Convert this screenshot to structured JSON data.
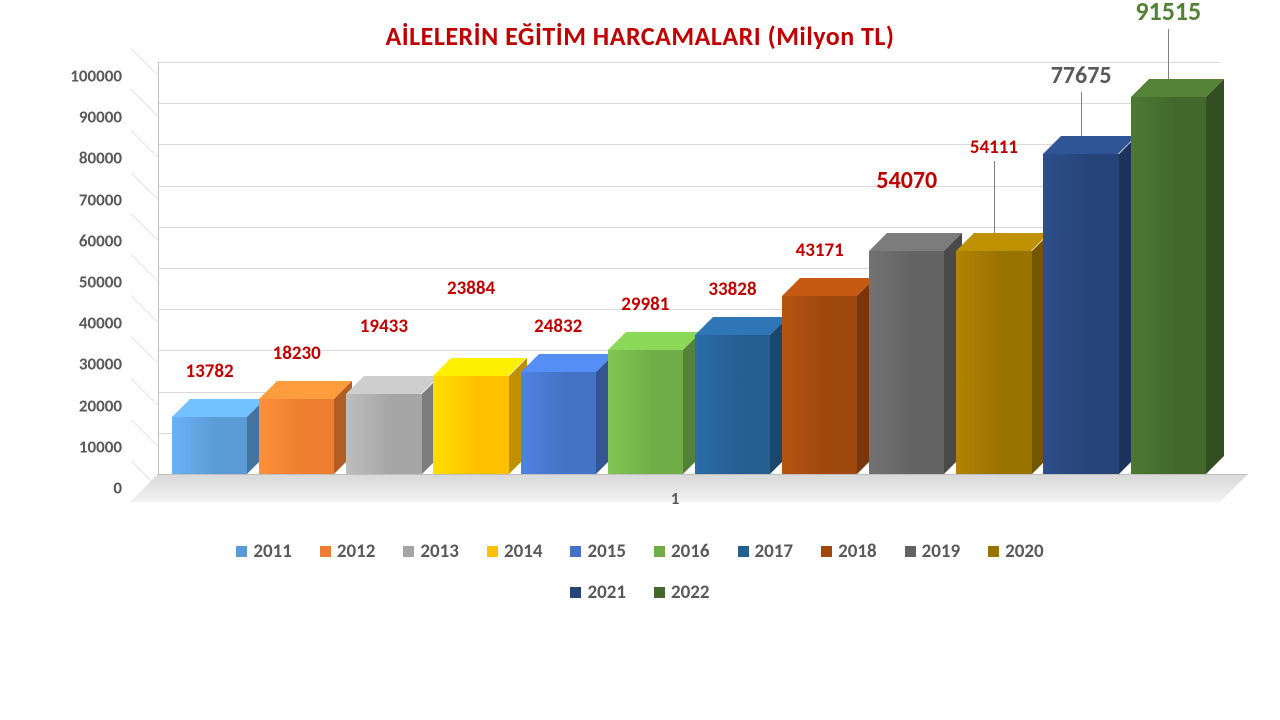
{
  "chart": {
    "type": "bar-3d",
    "title": "AİLELERİN EĞİTİM HARCAMALARI (Milyon TL)",
    "title_color": "#c00000",
    "title_fontsize": 26,
    "background_color": "#ffffff",
    "grid_color": "#d9d9d9",
    "floor_color": "#e6e6e6",
    "x_axis_tick": "1",
    "y_axis": {
      "min": 0,
      "max": 100000,
      "step": 10000,
      "ticks": [
        "0",
        "10000",
        "20000",
        "30000",
        "40000",
        "50000",
        "60000",
        "70000",
        "80000",
        "90000",
        "100000"
      ],
      "label_fontsize": 17,
      "label_color": "#595959"
    },
    "series": [
      {
        "year": "2011",
        "value": 13782,
        "color": "#5b9bd5",
        "label_color": "#c00000",
        "label_fontsize": 19,
        "label_offset": 34
      },
      {
        "year": "2012",
        "value": 18230,
        "color": "#ed7d31",
        "label_color": "#c00000",
        "label_fontsize": 19,
        "label_offset": 34
      },
      {
        "year": "2013",
        "value": 19433,
        "color": "#a5a5a5",
        "label_color": "#c00000",
        "label_fontsize": 19,
        "label_offset": 56
      },
      {
        "year": "2014",
        "value": 23884,
        "color": "#ffc000",
        "label_color": "#c00000",
        "label_fontsize": 19,
        "label_offset": 76
      },
      {
        "year": "2015",
        "value": 24832,
        "color": "#4472c4",
        "label_color": "#c00000",
        "label_fontsize": 19,
        "label_offset": 34
      },
      {
        "year": "2016",
        "value": 29981,
        "color": "#70ad47",
        "label_color": "#c00000",
        "label_fontsize": 19,
        "label_offset": 34
      },
      {
        "year": "2017",
        "value": 33828,
        "color": "#255e91",
        "label_color": "#c00000",
        "label_fontsize": 19,
        "label_offset": 34
      },
      {
        "year": "2018",
        "value": 43171,
        "color": "#9e480e",
        "label_color": "#c00000",
        "label_fontsize": 19,
        "label_offset": 34
      },
      {
        "year": "2019",
        "value": 54070,
        "color": "#636363",
        "label_color": "#c00000",
        "label_fontsize": 24,
        "label_offset": 56
      },
      {
        "year": "2020",
        "value": 54111,
        "color": "#997300",
        "label_color": "#c00000",
        "label_fontsize": 19,
        "label_offset": 92,
        "leader": true
      },
      {
        "year": "2021",
        "value": 77675,
        "color": "#264478",
        "label_color": "#595959",
        "label_fontsize": 24,
        "label_offset": 64,
        "leader": true
      },
      {
        "year": "2022",
        "value": 91515,
        "color": "#43682b",
        "label_color": "#548235",
        "label_fontsize": 26,
        "label_offset": 70,
        "leader": true
      }
    ],
    "legend": {
      "fontsize": 19,
      "color": "#595959",
      "swatch_size": 11
    }
  }
}
